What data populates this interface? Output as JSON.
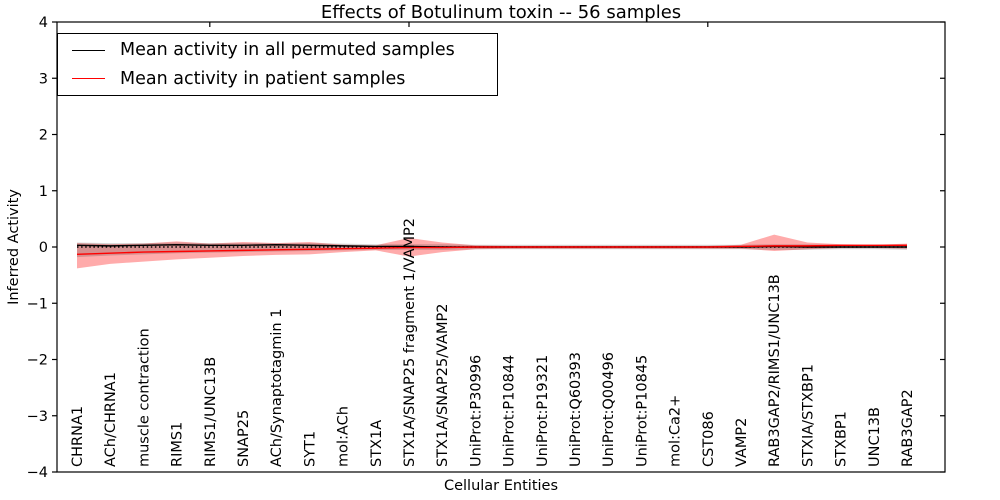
{
  "chart_data": {
    "type": "line",
    "title": "Effects of Botulinum toxin -- 56 samples",
    "xlabel": "Cellular Entities",
    "ylabel": "Inferred Activity",
    "ylim": [
      -4,
      4
    ],
    "ytick_labels": [
      "4",
      "3",
      "2",
      "1",
      "0",
      "−1",
      "−2",
      "−3",
      "−4"
    ],
    "ytick_values": [
      4,
      3,
      2,
      1,
      0,
      -1,
      -2,
      -3,
      -4
    ],
    "grid": false,
    "legend": {
      "position": "upper left",
      "entries": [
        {
          "label": "Mean activity in all permuted samples",
          "color": "#000000"
        },
        {
          "label": "Mean activity in patient samples",
          "color": "#ff0000"
        }
      ]
    },
    "zero_line": {
      "color": "#000000",
      "style": "dotted",
      "value": 0
    },
    "top_tick_indices": [
      4,
      10,
      19
    ],
    "categories": [
      "CHRNA1",
      "ACh/CHRNA1",
      "muscle contraction",
      "RIMS1",
      "RIMS1/UNC13B",
      "SNAP25",
      "ACh/Synaptotagmin 1",
      "SYT1",
      "mol:ACh",
      "STX1A",
      "STX1A/SNAP25 fragment 1/VAMP2",
      "STX1A/SNAP25/VAMP2",
      "UniProt:P30996",
      "UniProt:P10844",
      "UniProt:P19321",
      "UniProt:Q60393",
      "UniProt:Q00496",
      "UniProt:P10845",
      "mol:Ca2+",
      "CST086",
      "VAMP2",
      "RAB3GAP2/RIMS1/UNC13B",
      "STXIA/STXBP1",
      "STXBP1",
      "UNC13B",
      "RAB3GAP2"
    ],
    "series": [
      {
        "name": "Mean activity in all permuted samples",
        "color": "#000000",
        "values": [
          0.03,
          0.02,
          0.03,
          0.04,
          0.03,
          0.03,
          0.04,
          0.03,
          0.02,
          0.01,
          0.01,
          0.0,
          0.0,
          0.0,
          0.0,
          0.0,
          0.0,
          0.0,
          0.0,
          0.0,
          0.0,
          0.01,
          0.0,
          0.0,
          0.0,
          0.0
        ]
      },
      {
        "name": "Mean activity in patient samples",
        "color": "#ff0000",
        "values": [
          -0.13,
          -0.11,
          -0.09,
          -0.08,
          -0.07,
          -0.06,
          -0.05,
          -0.04,
          -0.03,
          -0.02,
          -0.01,
          -0.01,
          0.0,
          0.0,
          0.0,
          0.0,
          0.0,
          0.0,
          0.0,
          0.0,
          0.01,
          0.02,
          0.02,
          0.03,
          0.03,
          0.03
        ]
      }
    ],
    "bands": [
      {
        "name": "patient-sample-range",
        "color": "#ff0000",
        "opacity": 0.33,
        "upper": [
          0.07,
          0.05,
          0.06,
          0.1,
          0.06,
          0.09,
          0.07,
          0.09,
          0.04,
          0.03,
          0.16,
          0.08,
          0.03,
          0.02,
          0.02,
          0.02,
          0.02,
          0.02,
          0.02,
          0.02,
          0.04,
          0.22,
          0.08,
          0.05,
          0.04,
          0.06
        ],
        "lower": [
          -0.38,
          -0.3,
          -0.26,
          -0.22,
          -0.19,
          -0.16,
          -0.14,
          -0.13,
          -0.09,
          -0.06,
          -0.17,
          -0.09,
          -0.04,
          -0.03,
          -0.03,
          -0.03,
          -0.03,
          -0.03,
          -0.03,
          -0.03,
          -0.03,
          -0.07,
          -0.04,
          -0.02,
          -0.02,
          -0.03
        ]
      },
      {
        "name": "permuted-sample-range",
        "color": "#000000",
        "opacity": 0.16,
        "upper": [
          0.08,
          0.07,
          0.07,
          0.08,
          0.07,
          0.07,
          0.07,
          0.07,
          0.06,
          0.05,
          0.05,
          0.05,
          0.04,
          0.04,
          0.04,
          0.04,
          0.04,
          0.04,
          0.04,
          0.04,
          0.04,
          0.05,
          0.05,
          0.04,
          0.04,
          0.05
        ],
        "lower": [
          -0.18,
          -0.15,
          -0.13,
          -0.11,
          -0.1,
          -0.09,
          -0.08,
          -0.07,
          -0.06,
          -0.05,
          -0.05,
          -0.05,
          -0.04,
          -0.04,
          -0.04,
          -0.04,
          -0.04,
          -0.04,
          -0.04,
          -0.04,
          -0.04,
          -0.05,
          -0.05,
          -0.04,
          -0.04,
          -0.05
        ]
      }
    ]
  }
}
